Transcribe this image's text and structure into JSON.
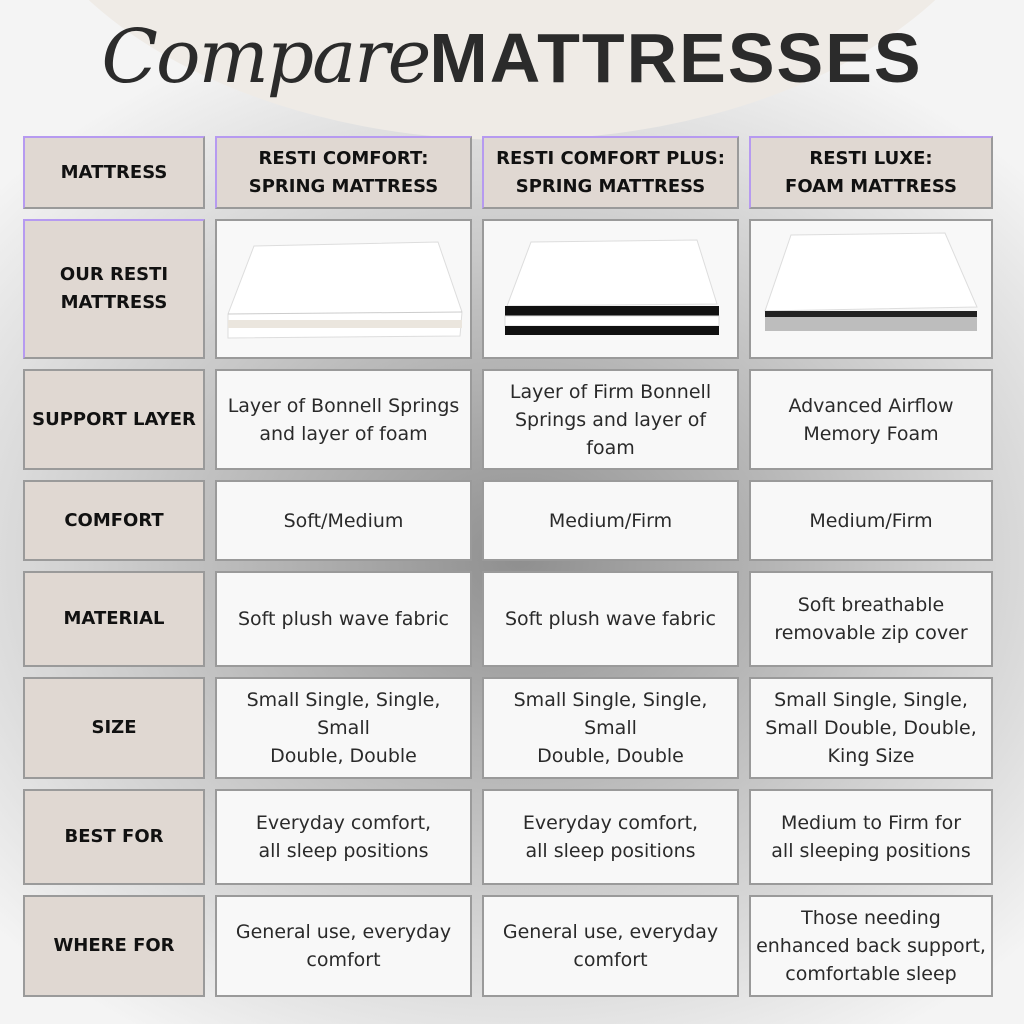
{
  "title": {
    "script": "Compare",
    "caps": "MATTRESSES"
  },
  "header": [
    "MATTRESS",
    "RESTI COMFORT:\nSPRING MATTRESS",
    "RESTI COMFORT PLUS:\nSPRING MATTRESS",
    "RESTI LUXE:\nFOAM MATTRESS"
  ],
  "rows": [
    {
      "label": "OUR RESTI\nMATTRESS",
      "images": [
        "spring-mattress-white",
        "spring-mattress-black-bands",
        "foam-mattress-grey-base"
      ]
    },
    {
      "label": "SUPPORT LAYER",
      "values": [
        "Layer of Bonnell Springs\nand layer of foam",
        "Layer of Firm Bonnell\nSprings and layer of\nfoam",
        "Advanced Airflow\nMemory Foam"
      ]
    },
    {
      "label": "COMFORT",
      "values": [
        "Soft/Medium",
        "Medium/Firm",
        "Medium/Firm"
      ]
    },
    {
      "label": "MATERIAL",
      "values": [
        "Soft plush wave fabric",
        "Soft plush wave fabric",
        "Soft breathable\nremovable zip cover"
      ]
    },
    {
      "label": "SIZE",
      "values": [
        "Small Single, Single, Small\nDouble, Double",
        "Small Single, Single, Small\nDouble, Double",
        "Small Single, Single,\nSmall Double, Double,\nKing Size"
      ]
    },
    {
      "label": "BEST FOR",
      "values": [
        "Everyday comfort,\nall sleep positions",
        "Everyday comfort,\nall sleep positions",
        "Medium to Firm for\nall sleeping positions"
      ]
    },
    {
      "label": "WHERE FOR",
      "values": [
        "General use, everyday\ncomfort",
        "General use, everyday\ncomfort",
        "Those needing\nenhanced back support,\ncomfortable sleep"
      ]
    }
  ],
  "colors": {
    "label_bg": "#e0d8d2",
    "cell_bg": "#f8f8f8",
    "accent": "#b69af0"
  }
}
